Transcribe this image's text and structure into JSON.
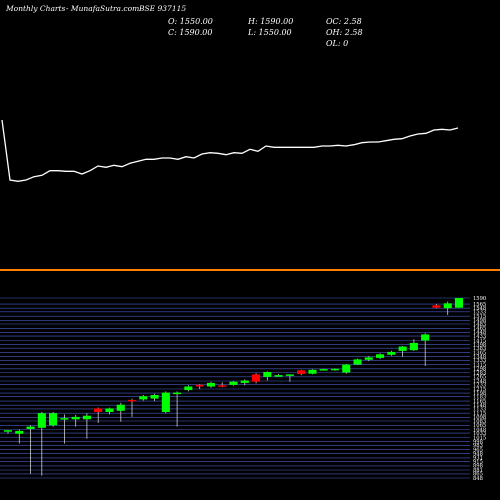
{
  "header": {
    "title": "Monthly Charts",
    "source": "- MunafaSutra.com",
    "symbol": "BSE 937115"
  },
  "ohlc": {
    "open": "O: 1550.00",
    "high": "H: 1590.00",
    "oc": "OC: 2.58",
    "close": "C: 1590.00",
    "low": "L: 1550.00",
    "oh": "OH: 2.58",
    "ol": "OL: 0"
  },
  "colors": {
    "background": "#000000",
    "up": "#00ff00",
    "down": "#ff0000",
    "grid": "#4a5cc7",
    "separator": "#ff7f00",
    "line": "#ffffff"
  },
  "chart_data": [
    {
      "type": "line",
      "y": [
        1590,
        1500,
        1498,
        1500,
        1505,
        1507,
        1514,
        1514,
        1513,
        1513,
        1509,
        1514,
        1521,
        1519,
        1522,
        1520,
        1525,
        1528,
        1531,
        1531,
        1533,
        1533,
        1531,
        1535,
        1533,
        1539,
        1541,
        1540,
        1538,
        1541,
        1540,
        1546,
        1543,
        1551,
        1549,
        1549,
        1549,
        1549,
        1549,
        1549,
        1551,
        1551,
        1552,
        1551,
        1553,
        1556,
        1557,
        1557,
        1559,
        1561,
        1562,
        1566,
        1569,
        1570,
        1575,
        1576,
        1575,
        1578
      ]
    },
    {
      "type": "candlestick",
      "y_ticks": [
        1590,
        1565,
        1548,
        1533,
        1515,
        1498,
        1483,
        1465,
        1448,
        1433,
        1415,
        1398,
        1383,
        1365,
        1348,
        1333,
        1315,
        1298,
        1283,
        1265,
        1248,
        1233,
        1215,
        1198,
        1183,
        1165,
        1148,
        1133,
        1115,
        1098,
        1083,
        1065,
        1048,
        1033,
        1015,
        998,
        983,
        965,
        948,
        931,
        915,
        898,
        881,
        865,
        848
      ],
      "ylim": [
        848,
        1590
      ],
      "candles": [
        {
          "o": 1040,
          "h": 1045,
          "l": 1030,
          "c": 1045,
          "dir": "up"
        },
        {
          "o": 1030,
          "h": 1048,
          "l": 990,
          "c": 1042,
          "dir": "up"
        },
        {
          "o": 1050,
          "h": 1065,
          "l": 865,
          "c": 1060,
          "dir": "up"
        },
        {
          "o": 1055,
          "h": 1120,
          "l": 858,
          "c": 1115,
          "dir": "up"
        },
        {
          "o": 1065,
          "h": 1120,
          "l": 1060,
          "c": 1115,
          "dir": "up"
        },
        {
          "o": 1090,
          "h": 1110,
          "l": 990,
          "c": 1095,
          "dir": "up"
        },
        {
          "o": 1090,
          "h": 1108,
          "l": 1060,
          "c": 1100,
          "dir": "up"
        },
        {
          "o": 1090,
          "h": 1115,
          "l": 1010,
          "c": 1105,
          "dir": "up"
        },
        {
          "o": 1135,
          "h": 1138,
          "l": 1075,
          "c": 1120,
          "dir": "down"
        },
        {
          "o": 1120,
          "h": 1138,
          "l": 1110,
          "c": 1135,
          "dir": "up"
        },
        {
          "o": 1125,
          "h": 1158,
          "l": 1080,
          "c": 1150,
          "dir": "up"
        },
        {
          "o": 1170,
          "h": 1175,
          "l": 1100,
          "c": 1165,
          "dir": "down"
        },
        {
          "o": 1172,
          "h": 1190,
          "l": 1167,
          "c": 1185,
          "dir": "up"
        },
        {
          "o": 1175,
          "h": 1195,
          "l": 1165,
          "c": 1190,
          "dir": "up"
        },
        {
          "o": 1120,
          "h": 1205,
          "l": 1115,
          "c": 1200,
          "dir": "up"
        },
        {
          "o": 1195,
          "h": 1205,
          "l": 1060,
          "c": 1200,
          "dir": "up"
        },
        {
          "o": 1210,
          "h": 1230,
          "l": 1205,
          "c": 1225,
          "dir": "up"
        },
        {
          "o": 1232,
          "h": 1235,
          "l": 1215,
          "c": 1225,
          "dir": "down"
        },
        {
          "o": 1225,
          "h": 1245,
          "l": 1220,
          "c": 1240,
          "dir": "up"
        },
        {
          "o": 1230,
          "h": 1242,
          "l": 1222,
          "c": 1225,
          "dir": "down"
        },
        {
          "o": 1232,
          "h": 1248,
          "l": 1228,
          "c": 1245,
          "dir": "up"
        },
        {
          "o": 1240,
          "h": 1255,
          "l": 1230,
          "c": 1250,
          "dir": "up"
        },
        {
          "o": 1275,
          "h": 1280,
          "l": 1238,
          "c": 1245,
          "dir": "down"
        },
        {
          "o": 1265,
          "h": 1288,
          "l": 1250,
          "c": 1285,
          "dir": "up"
        },
        {
          "o": 1270,
          "h": 1277,
          "l": 1268,
          "c": 1272,
          "dir": "up"
        },
        {
          "o": 1272,
          "h": 1276,
          "l": 1245,
          "c": 1275,
          "dir": "up"
        },
        {
          "o": 1292,
          "h": 1294,
          "l": 1272,
          "c": 1277,
          "dir": "down"
        },
        {
          "o": 1278,
          "h": 1296,
          "l": 1276,
          "c": 1294,
          "dir": "up"
        },
        {
          "o": 1293,
          "h": 1298,
          "l": 1292,
          "c": 1297,
          "dir": "up"
        },
        {
          "o": 1296,
          "h": 1300,
          "l": 1290,
          "c": 1298,
          "dir": "up"
        },
        {
          "o": 1283,
          "h": 1318,
          "l": 1278,
          "c": 1316,
          "dir": "up"
        },
        {
          "o": 1316,
          "h": 1340,
          "l": 1314,
          "c": 1337,
          "dir": "up"
        },
        {
          "o": 1335,
          "h": 1350,
          "l": 1330,
          "c": 1345,
          "dir": "up"
        },
        {
          "o": 1343,
          "h": 1362,
          "l": 1338,
          "c": 1358,
          "dir": "up"
        },
        {
          "o": 1356,
          "h": 1372,
          "l": 1352,
          "c": 1368,
          "dir": "up"
        },
        {
          "o": 1372,
          "h": 1392,
          "l": 1348,
          "c": 1390,
          "dir": "up"
        },
        {
          "o": 1375,
          "h": 1420,
          "l": 1372,
          "c": 1405,
          "dir": "up"
        },
        {
          "o": 1415,
          "h": 1445,
          "l": 1310,
          "c": 1440,
          "dir": "up"
        },
        {
          "o": 1560,
          "h": 1565,
          "l": 1548,
          "c": 1550,
          "dir": "down"
        },
        {
          "o": 1548,
          "h": 1575,
          "l": 1520,
          "c": 1568,
          "dir": "up"
        },
        {
          "o": 1550,
          "h": 1590,
          "l": 1550,
          "c": 1590,
          "dir": "up"
        }
      ]
    }
  ]
}
